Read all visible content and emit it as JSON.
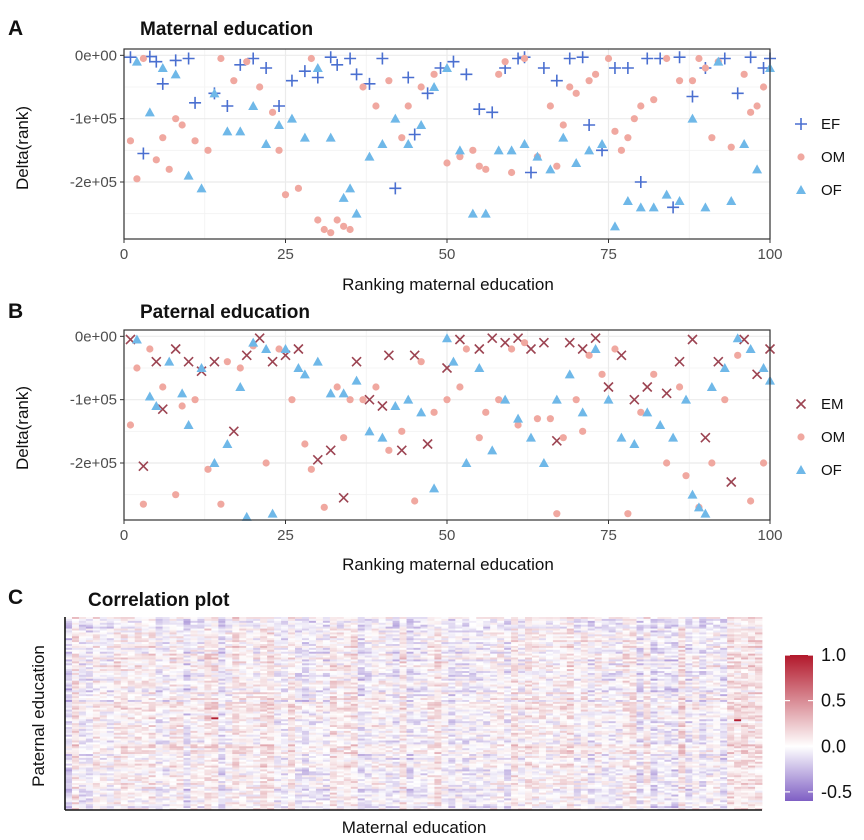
{
  "panels": {
    "a": {
      "letter": "A",
      "title": "Maternal education",
      "xlabel": "Ranking maternal education",
      "ylabel": "Delta(rank)"
    },
    "b": {
      "letter": "B",
      "title": "Paternal education",
      "xlabel": "Ranking maternal education",
      "ylabel": "Delta(rank)"
    },
    "c": {
      "letter": "C",
      "title": "Correlation plot",
      "xlabel": "Maternal education",
      "ylabel": "Paternal education"
    }
  },
  "colors": {
    "EF": "#4a6fd0",
    "OM": "#f0a8a0",
    "OF": "#6fb8e8",
    "EM": "#9c4452",
    "heat_high": "#b2182b",
    "heat_mid": "#ffffff",
    "heat_low": "#7f5fc4"
  },
  "chart_data": [
    {
      "type": "scatter",
      "title": "Maternal education",
      "xlabel": "Ranking maternal education",
      "ylabel": "Delta(rank)",
      "xlim": [
        0,
        100
      ],
      "ylim": [
        -290000,
        10000
      ],
      "xticks": [
        0,
        25,
        50,
        75,
        100
      ],
      "yticks": [
        0,
        -100000,
        -200000
      ],
      "ytick_labels": [
        "0e+00",
        "-1e+05",
        "-2e+05"
      ],
      "grid": true,
      "legend": "right",
      "series": [
        {
          "name": "EF",
          "marker": "plus",
          "x": [
            1,
            3,
            4,
            5,
            6,
            8,
            10,
            11,
            14,
            16,
            18,
            20,
            22,
            24,
            26,
            28,
            30,
            32,
            33,
            35,
            36,
            38,
            40,
            42,
            44,
            45,
            47,
            49,
            51,
            53,
            55,
            57,
            59,
            61,
            62,
            63,
            65,
            67,
            69,
            71,
            72,
            74,
            76,
            78,
            80,
            81,
            83,
            85,
            86,
            88,
            90,
            93,
            95,
            97,
            99,
            100
          ],
          "y": [
            -3000,
            -155000,
            -2000,
            -10000,
            -45000,
            -8000,
            -5000,
            -75000,
            -60000,
            -80000,
            -15000,
            -5000,
            -20000,
            -80000,
            -40000,
            -25000,
            -35000,
            -3000,
            -15000,
            -5000,
            -30000,
            -45000,
            -5000,
            -210000,
            -35000,
            -125000,
            -60000,
            -20000,
            -10000,
            -30000,
            -85000,
            -90000,
            -20000,
            -5000,
            -3000,
            -185000,
            -20000,
            -40000,
            -5000,
            -3000,
            -110000,
            -150000,
            -20000,
            -20000,
            -200000,
            -5000,
            -5000,
            -240000,
            -3000,
            -65000,
            -20000,
            -5000,
            -60000,
            -3000,
            -20000,
            -5000
          ]
        },
        {
          "name": "OM",
          "marker": "circle",
          "x": [
            1,
            2,
            3,
            5,
            6,
            7,
            8,
            9,
            11,
            13,
            15,
            17,
            19,
            21,
            23,
            24,
            25,
            27,
            29,
            30,
            31,
            32,
            33,
            34,
            35,
            37,
            39,
            41,
            43,
            44,
            46,
            48,
            50,
            52,
            54,
            55,
            56,
            58,
            59,
            60,
            62,
            64,
            66,
            67,
            68,
            69,
            70,
            72,
            73,
            75,
            76,
            77,
            78,
            79,
            80,
            82,
            84,
            86,
            88,
            89,
            90,
            91,
            92,
            94,
            96,
            97,
            98,
            99
          ],
          "y": [
            -135000,
            -195000,
            -5000,
            -165000,
            -130000,
            -180000,
            -100000,
            -110000,
            -135000,
            -150000,
            -5000,
            -40000,
            -10000,
            -50000,
            -90000,
            -150000,
            -220000,
            -210000,
            -5000,
            -260000,
            -275000,
            -280000,
            -260000,
            -270000,
            -275000,
            -50000,
            -80000,
            -40000,
            -130000,
            -80000,
            -50000,
            -30000,
            -170000,
            -160000,
            -150000,
            -175000,
            -180000,
            -30000,
            -10000,
            -185000,
            -5000,
            -160000,
            -80000,
            -175000,
            -110000,
            -50000,
            -60000,
            -40000,
            -30000,
            -5000,
            -120000,
            -150000,
            -130000,
            -100000,
            -80000,
            -70000,
            -5000,
            -40000,
            -40000,
            -5000,
            -20000,
            -130000,
            -10000,
            -145000,
            -30000,
            -90000,
            -80000,
            -50000
          ]
        },
        {
          "name": "OF",
          "marker": "triangle",
          "x": [
            2,
            4,
            6,
            8,
            10,
            12,
            14,
            16,
            18,
            20,
            22,
            24,
            26,
            28,
            30,
            32,
            34,
            35,
            36,
            38,
            40,
            42,
            44,
            46,
            48,
            50,
            52,
            54,
            56,
            58,
            60,
            62,
            64,
            66,
            68,
            70,
            72,
            74,
            76,
            78,
            80,
            82,
            84,
            86,
            88,
            90,
            92,
            94,
            96,
            98,
            100
          ],
          "y": [
            -10000,
            -90000,
            -20000,
            -30000,
            -190000,
            -210000,
            -60000,
            -120000,
            -120000,
            -80000,
            -140000,
            -110000,
            -100000,
            -130000,
            -20000,
            -130000,
            -225000,
            -210000,
            -250000,
            -160000,
            -140000,
            -100000,
            -140000,
            -110000,
            -50000,
            -20000,
            -150000,
            -250000,
            -250000,
            -150000,
            -150000,
            -140000,
            -160000,
            -180000,
            -130000,
            -170000,
            -150000,
            -140000,
            -270000,
            -230000,
            -240000,
            -240000,
            -220000,
            -230000,
            -100000,
            -240000,
            -10000,
            -230000,
            -140000,
            -180000,
            -20000
          ]
        }
      ]
    },
    {
      "type": "scatter",
      "title": "Paternal education",
      "xlabel": "Ranking maternal education",
      "ylabel": "Delta(rank)",
      "xlim": [
        0,
        100
      ],
      "ylim": [
        -290000,
        10000
      ],
      "xticks": [
        0,
        25,
        50,
        75,
        100
      ],
      "yticks": [
        0,
        -100000,
        -200000
      ],
      "ytick_labels": [
        "0e+00",
        "-1e+05",
        "-2e+05"
      ],
      "grid": true,
      "legend": "right",
      "series": [
        {
          "name": "EM",
          "marker": "cross",
          "x": [
            1,
            3,
            5,
            6,
            8,
            10,
            12,
            14,
            17,
            19,
            21,
            23,
            25,
            27,
            30,
            32,
            34,
            36,
            38,
            40,
            41,
            43,
            45,
            47,
            50,
            52,
            55,
            57,
            59,
            61,
            63,
            65,
            67,
            69,
            71,
            73,
            75,
            77,
            79,
            81,
            84,
            86,
            88,
            90,
            92,
            94,
            96,
            98,
            100
          ],
          "y": [
            -5000,
            -205000,
            -40000,
            -115000,
            -20000,
            -40000,
            -55000,
            -40000,
            -150000,
            -30000,
            -3000,
            -40000,
            -30000,
            -20000,
            -195000,
            -180000,
            -255000,
            -40000,
            -100000,
            -110000,
            -30000,
            -180000,
            -30000,
            -170000,
            -50000,
            -5000,
            -20000,
            -3000,
            -10000,
            -3000,
            -20000,
            -10000,
            -165000,
            -10000,
            -20000,
            -3000,
            -80000,
            -30000,
            -100000,
            -80000,
            -90000,
            -40000,
            -5000,
            -160000,
            -40000,
            -230000,
            -5000,
            -60000,
            -20000
          ]
        },
        {
          "name": "OM",
          "marker": "circle",
          "x": [
            1,
            2,
            3,
            4,
            6,
            8,
            9,
            11,
            13,
            15,
            16,
            18,
            20,
            22,
            24,
            26,
            28,
            29,
            31,
            33,
            34,
            35,
            37,
            39,
            41,
            43,
            45,
            46,
            48,
            50,
            52,
            53,
            55,
            56,
            58,
            60,
            61,
            62,
            64,
            66,
            67,
            68,
            70,
            71,
            72,
            74,
            76,
            78,
            80,
            82,
            84,
            86,
            87,
            89,
            91,
            93,
            95,
            97,
            99
          ],
          "y": [
            -140000,
            -50000,
            -265000,
            -20000,
            -80000,
            -250000,
            -110000,
            -100000,
            -210000,
            -265000,
            -40000,
            -50000,
            -15000,
            -200000,
            -20000,
            -100000,
            -170000,
            -210000,
            -270000,
            -80000,
            -160000,
            -100000,
            -100000,
            -80000,
            -180000,
            -150000,
            -260000,
            -40000,
            -120000,
            -100000,
            -80000,
            -20000,
            -160000,
            -120000,
            -100000,
            -20000,
            -140000,
            -10000,
            -130000,
            -130000,
            -280000,
            -160000,
            -100000,
            -150000,
            -30000,
            -60000,
            -20000,
            -280000,
            -120000,
            -60000,
            -200000,
            -80000,
            -220000,
            -270000,
            -200000,
            -100000,
            -30000,
            -260000,
            -200000
          ]
        },
        {
          "name": "OF",
          "marker": "triangle",
          "x": [
            2,
            4,
            5,
            7,
            9,
            10,
            12,
            14,
            16,
            18,
            19,
            20,
            22,
            23,
            25,
            27,
            28,
            30,
            32,
            34,
            36,
            38,
            40,
            42,
            44,
            46,
            48,
            50,
            51,
            53,
            55,
            57,
            59,
            61,
            63,
            65,
            67,
            69,
            71,
            73,
            75,
            77,
            79,
            81,
            83,
            85,
            87,
            88,
            89,
            90,
            91,
            93,
            95,
            97,
            99,
            100
          ],
          "y": [
            -5000,
            -95000,
            -110000,
            -40000,
            -90000,
            -140000,
            -50000,
            -200000,
            -170000,
            -80000,
            -285000,
            -10000,
            -20000,
            -280000,
            -20000,
            -50000,
            -60000,
            -40000,
            -90000,
            -90000,
            -70000,
            -150000,
            -160000,
            -110000,
            -100000,
            -120000,
            -240000,
            -3000,
            -40000,
            -200000,
            -50000,
            -180000,
            -100000,
            -130000,
            -160000,
            -200000,
            -100000,
            -60000,
            -120000,
            -20000,
            -100000,
            -160000,
            -170000,
            -120000,
            -140000,
            -160000,
            -100000,
            -250000,
            -270000,
            -280000,
            -80000,
            -50000,
            -3000,
            -20000,
            -50000,
            -70000
          ]
        }
      ]
    },
    {
      "type": "heatmap",
      "title": "Correlation plot",
      "xlabel": "Maternal education",
      "ylabel": "Paternal education",
      "n_cols": 100,
      "n_rows": 100,
      "color_range": [
        -0.6,
        1.0
      ],
      "colorbar_ticks": [
        1.0,
        0.5,
        0.0,
        -0.5
      ],
      "colorbar_labels": [
        "1.0",
        "0.5",
        "0.0",
        "-0.5"
      ],
      "legend": "right"
    }
  ]
}
